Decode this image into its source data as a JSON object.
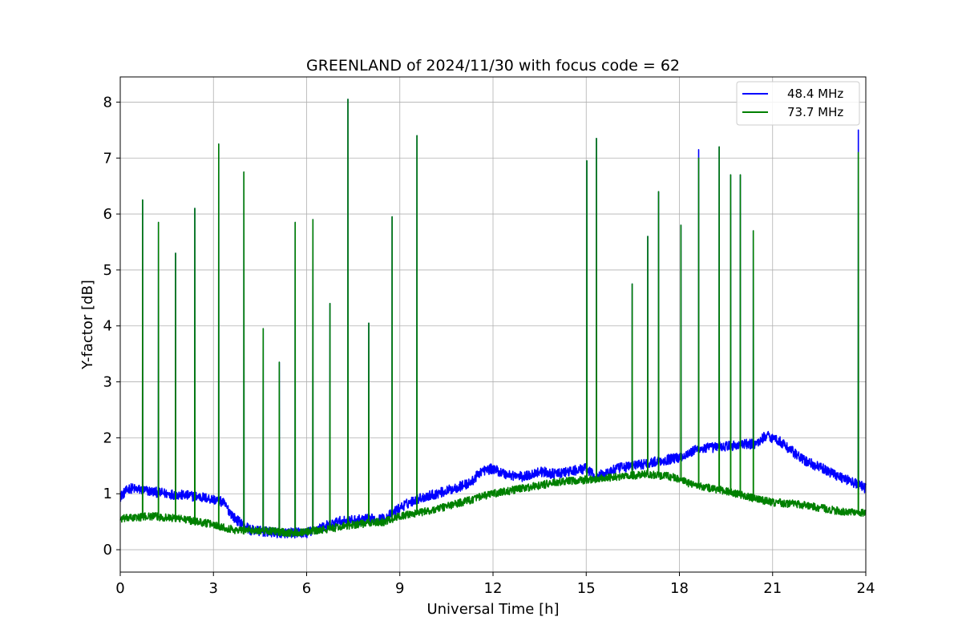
{
  "chart_data": {
    "type": "line",
    "title": "GREENLAND of 2024/11/30 with focus code = 62",
    "xlabel": "Universal Time [h]",
    "ylabel": "Y-factor [dB]",
    "xlim": [
      0,
      24
    ],
    "ylim": [
      -0.4,
      8.45
    ],
    "xticks": [
      0,
      3,
      6,
      9,
      12,
      15,
      18,
      21,
      24
    ],
    "yticks": [
      0,
      1,
      2,
      3,
      4,
      5,
      6,
      7,
      8
    ],
    "grid": true,
    "legend_position": "top-right",
    "series": [
      {
        "name": "48.4 MHz",
        "color": "#0000ff",
        "noise_amplitude": 0.09,
        "baseline": [
          [
            0,
            0.95
          ],
          [
            0.3,
            1.1
          ],
          [
            1.5,
            1.0
          ],
          [
            2.5,
            0.95
          ],
          [
            3.0,
            0.9
          ],
          [
            3.3,
            0.85
          ],
          [
            3.7,
            0.55
          ],
          [
            4.2,
            0.35
          ],
          [
            5.0,
            0.3
          ],
          [
            6.0,
            0.3
          ],
          [
            7.0,
            0.5
          ],
          [
            8.0,
            0.55
          ],
          [
            8.5,
            0.55
          ],
          [
            9.0,
            0.75
          ],
          [
            9.5,
            0.9
          ],
          [
            10.5,
            1.05
          ],
          [
            11.3,
            1.2
          ],
          [
            11.6,
            1.4
          ],
          [
            12.0,
            1.45
          ],
          [
            12.4,
            1.35
          ],
          [
            13.0,
            1.3
          ],
          [
            13.5,
            1.4
          ],
          [
            14.0,
            1.35
          ],
          [
            15.0,
            1.45
          ],
          [
            15.3,
            1.3
          ],
          [
            16.0,
            1.45
          ],
          [
            16.5,
            1.5
          ],
          [
            17.0,
            1.55
          ],
          [
            17.5,
            1.6
          ],
          [
            18.0,
            1.65
          ],
          [
            18.6,
            1.8
          ],
          [
            19.5,
            1.85
          ],
          [
            20.5,
            1.9
          ],
          [
            20.8,
            2.05
          ],
          [
            21.2,
            1.95
          ],
          [
            22.0,
            1.6
          ],
          [
            23.0,
            1.35
          ],
          [
            24.0,
            1.1
          ]
        ],
        "spikes": [
          [
            0.72,
            6.25
          ],
          [
            1.23,
            5.85
          ],
          [
            1.78,
            5.3
          ],
          [
            2.4,
            6.1
          ],
          [
            3.17,
            7.25
          ],
          [
            3.98,
            6.75
          ],
          [
            4.6,
            3.95
          ],
          [
            5.12,
            3.35
          ],
          [
            5.63,
            5.85
          ],
          [
            6.2,
            5.9
          ],
          [
            6.75,
            4.4
          ],
          [
            7.33,
            8.05
          ],
          [
            8.0,
            4.05
          ],
          [
            8.75,
            5.95
          ],
          [
            9.55,
            7.4
          ],
          [
            15.02,
            6.95
          ],
          [
            15.33,
            7.35
          ],
          [
            16.48,
            4.75
          ],
          [
            16.98,
            5.6
          ],
          [
            17.33,
            6.4
          ],
          [
            18.05,
            5.8
          ],
          [
            18.62,
            7.15
          ],
          [
            19.28,
            7.2
          ],
          [
            19.65,
            6.7
          ],
          [
            19.96,
            6.7
          ],
          [
            20.38,
            5.7
          ],
          [
            23.76,
            7.5
          ]
        ]
      },
      {
        "name": "73.7 MHz",
        "color": "#008000",
        "noise_amplitude": 0.07,
        "baseline": [
          [
            0,
            0.55
          ],
          [
            1.0,
            0.6
          ],
          [
            2.0,
            0.55
          ],
          [
            3.0,
            0.45
          ],
          [
            3.7,
            0.35
          ],
          [
            4.5,
            0.35
          ],
          [
            5.5,
            0.3
          ],
          [
            6.5,
            0.35
          ],
          [
            7.5,
            0.45
          ],
          [
            8.5,
            0.5
          ],
          [
            9.0,
            0.6
          ],
          [
            10.0,
            0.7
          ],
          [
            11.0,
            0.85
          ],
          [
            12.0,
            1.0
          ],
          [
            13.0,
            1.1
          ],
          [
            14.0,
            1.2
          ],
          [
            15.0,
            1.25
          ],
          [
            16.0,
            1.3
          ],
          [
            17.0,
            1.35
          ],
          [
            17.8,
            1.3
          ],
          [
            18.0,
            1.25
          ],
          [
            18.5,
            1.15
          ],
          [
            19.5,
            1.05
          ],
          [
            20.5,
            0.9
          ],
          [
            21.0,
            0.85
          ],
          [
            22.0,
            0.8
          ],
          [
            23.0,
            0.7
          ],
          [
            24.0,
            0.65
          ]
        ],
        "spikes": [
          [
            0.72,
            6.25
          ],
          [
            1.23,
            5.85
          ],
          [
            1.78,
            5.3
          ],
          [
            2.4,
            6.1
          ],
          [
            3.17,
            7.25
          ],
          [
            3.98,
            6.75
          ],
          [
            4.6,
            3.95
          ],
          [
            5.12,
            3.35
          ],
          [
            5.63,
            5.85
          ],
          [
            6.2,
            5.9
          ],
          [
            6.75,
            4.4
          ],
          [
            7.33,
            8.05
          ],
          [
            8.0,
            4.05
          ],
          [
            8.75,
            5.95
          ],
          [
            9.55,
            7.4
          ],
          [
            15.02,
            6.95
          ],
          [
            15.33,
            7.35
          ],
          [
            16.48,
            4.75
          ],
          [
            16.98,
            5.6
          ],
          [
            17.33,
            6.4
          ],
          [
            18.05,
            5.8
          ],
          [
            18.62,
            7.0
          ],
          [
            19.28,
            7.2
          ],
          [
            19.65,
            6.7
          ],
          [
            19.96,
            6.7
          ],
          [
            20.38,
            5.7
          ],
          [
            23.76,
            7.1
          ]
        ]
      }
    ]
  }
}
